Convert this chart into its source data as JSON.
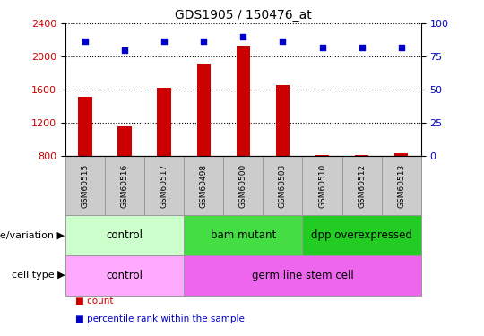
{
  "title": "GDS1905 / 150476_at",
  "samples": [
    "GSM60515",
    "GSM60516",
    "GSM60517",
    "GSM60498",
    "GSM60500",
    "GSM60503",
    "GSM60510",
    "GSM60512",
    "GSM60513"
  ],
  "counts": [
    1520,
    1160,
    1620,
    1920,
    2130,
    1660,
    810,
    820,
    840
  ],
  "percentile_ranks": [
    87,
    80,
    87,
    87,
    90,
    87,
    82,
    82,
    82
  ],
  "ylim_left": [
    800,
    2400
  ],
  "ylim_right": [
    0,
    100
  ],
  "yticks_left": [
    800,
    1200,
    1600,
    2000,
    2400
  ],
  "yticks_right": [
    0,
    25,
    50,
    75,
    100
  ],
  "bar_color": "#cc0000",
  "dot_color": "#0000cc",
  "bar_width": 0.35,
  "groups": [
    {
      "label": "control",
      "start": 0,
      "end": 3,
      "color": "#ccffcc",
      "border": "#999999"
    },
    {
      "label": "bam mutant",
      "start": 3,
      "end": 6,
      "color": "#44dd44",
      "border": "#999999"
    },
    {
      "label": "dpp overexpressed",
      "start": 6,
      "end": 9,
      "color": "#22cc22",
      "border": "#999999"
    }
  ],
  "cell_types": [
    {
      "label": "control",
      "start": 0,
      "end": 3,
      "color": "#ffaaff",
      "border": "#999999"
    },
    {
      "label": "germ line stem cell",
      "start": 3,
      "end": 9,
      "color": "#ee66ee",
      "border": "#999999"
    }
  ],
  "sample_box_color": "#cccccc",
  "sample_box_border": "#999999",
  "row_label_fontsize": 8,
  "legend_items": [
    {
      "label": "count",
      "color": "#cc0000"
    },
    {
      "label": "percentile rank within the sample",
      "color": "#0000cc"
    }
  ],
  "title_fontsize": 10,
  "tick_fontsize": 8,
  "label_fontsize": 8.5,
  "sample_fontsize": 6.5
}
